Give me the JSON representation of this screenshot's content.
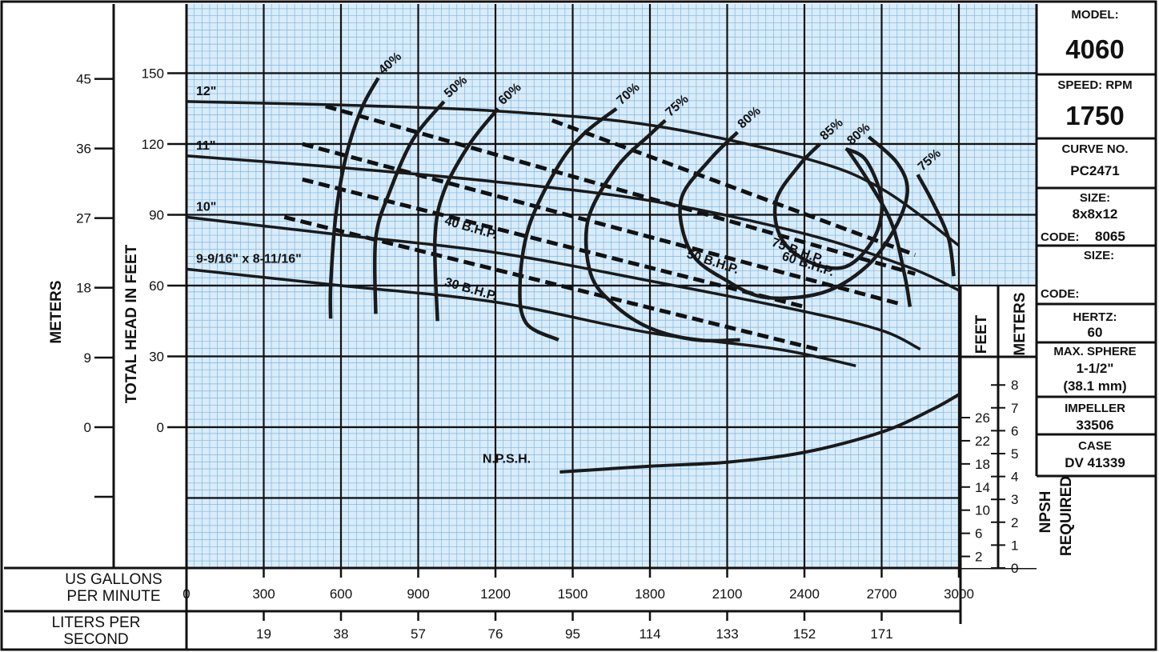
{
  "info_panel": {
    "model_label": "MODEL:",
    "model": "4060",
    "speed_label": "SPEED: RPM",
    "speed": "1750",
    "curve_label": "CURVE NO.",
    "curve": "PC2471",
    "size_label": "SIZE:",
    "size": "8x8x12",
    "code_label": "CODE:",
    "code": "8065",
    "size2_label": "SIZE:",
    "code2_label": "CODE:",
    "hertz_label": "HERTZ:",
    "hertz": "60",
    "sphere_label": "MAX. SPHERE",
    "sphere_in": "1-1/2\"",
    "sphere_mm": "(38.1 mm)",
    "impeller_label": "IMPELLER",
    "impeller": "33506",
    "case_label": "CASE",
    "case": "DV 41339"
  },
  "axes": {
    "meters_title": "METERS",
    "head_title": "TOTAL HEAD IN FEET",
    "gpm_title_1": "US GALLONS",
    "gpm_title_2": "PER MINUTE",
    "lps_title_1": "LITERS PER",
    "lps_title_2": "SECOND",
    "npsh_feet_title": "FEET",
    "npsh_meters_title": "METERS",
    "npsh_title_1": "NPSH",
    "npsh_title_2": "REQUIRED"
  },
  "chart_data": {
    "type": "line",
    "x_unit": "US gallons per minute",
    "xlim": [
      0,
      3000
    ],
    "ylim": [
      -60,
      180
    ],
    "x_ticks": [
      "0",
      "300",
      "600",
      "900",
      "1200",
      "1500",
      "1800",
      "2100",
      "2400",
      "2700",
      "3000"
    ],
    "lps_ticks": [
      {
        "gpm": 300,
        "label": "19"
      },
      {
        "gpm": 600,
        "label": "38"
      },
      {
        "gpm": 900,
        "label": "57"
      },
      {
        "gpm": 1200,
        "label": "76"
      },
      {
        "gpm": 1500,
        "label": "95"
      },
      {
        "gpm": 1800,
        "label": "114"
      },
      {
        "gpm": 2100,
        "label": "133"
      },
      {
        "gpm": 2400,
        "label": "152"
      },
      {
        "gpm": 2700,
        "label": "171"
      }
    ],
    "feet_ticks": [
      {
        "v": 150,
        "label": "150"
      },
      {
        "v": 120,
        "label": "120"
      },
      {
        "v": 90,
        "label": "90"
      },
      {
        "v": 60,
        "label": "60"
      },
      {
        "v": 30,
        "label": "30"
      },
      {
        "v": 0,
        "label": "0"
      }
    ],
    "meter_ticks": [
      {
        "v": 147.6,
        "label": "45"
      },
      {
        "v": 118.1,
        "label": "36"
      },
      {
        "v": 88.6,
        "label": "27"
      },
      {
        "v": 59.1,
        "label": "18"
      },
      {
        "v": 29.5,
        "label": "9"
      },
      {
        "v": 0,
        "label": "0"
      },
      {
        "v": -29.5,
        "label": ""
      }
    ],
    "npsh_feet_ticks": [
      {
        "v": 26,
        "label": "26"
      },
      {
        "v": 22,
        "label": "22"
      },
      {
        "v": 18,
        "label": "18"
      },
      {
        "v": 14,
        "label": "14"
      },
      {
        "v": 10,
        "label": "10"
      },
      {
        "v": 6,
        "label": "6"
      },
      {
        "v": 2,
        "label": "2"
      }
    ],
    "npsh_meter_ticks": [
      {
        "v": 8,
        "label": "8"
      },
      {
        "v": 7,
        "label": "7"
      },
      {
        "v": 6,
        "label": "6"
      },
      {
        "v": 5,
        "label": "5"
      },
      {
        "v": 4,
        "label": "4"
      },
      {
        "v": 3,
        "label": "3"
      },
      {
        "v": 2,
        "label": "2"
      },
      {
        "v": 1,
        "label": "1"
      },
      {
        "v": 0,
        "label": "0"
      }
    ],
    "head_curves": [
      {
        "name": "12\"",
        "points": [
          [
            0,
            138
          ],
          [
            600,
            136.5
          ],
          [
            1200,
            134
          ],
          [
            1800,
            128
          ],
          [
            2400,
            114
          ],
          [
            2700,
            101
          ],
          [
            3000,
            77
          ]
        ]
      },
      {
        "name": "11\"",
        "points": [
          [
            0,
            115
          ],
          [
            600,
            110
          ],
          [
            1200,
            104
          ],
          [
            1800,
            96
          ],
          [
            2400,
            82
          ],
          [
            2800,
            68
          ],
          [
            3000,
            58
          ]
        ]
      },
      {
        "name": "10\"",
        "points": [
          [
            0,
            89
          ],
          [
            600,
            81.5
          ],
          [
            1200,
            74
          ],
          [
            1800,
            62
          ],
          [
            2400,
            49
          ],
          [
            2700,
            41
          ],
          [
            2850,
            33
          ]
        ]
      },
      {
        "name": "9-9/16\" x 8-11/16\"",
        "points": [
          [
            0,
            67
          ],
          [
            600,
            60
          ],
          [
            1200,
            53
          ],
          [
            1800,
            40
          ],
          [
            2300,
            33
          ],
          [
            2600,
            26
          ]
        ]
      }
    ],
    "bhp_lines": [
      {
        "name": "75 B.H.P.",
        "points": [
          [
            1420,
            130
          ],
          [
            2830,
            73
          ]
        ]
      },
      {
        "name": "60 B.H.P.",
        "points": [
          [
            540,
            136
          ],
          [
            2830,
            65
          ]
        ]
      },
      {
        "name": "50 B.H.P.",
        "points": [
          [
            450,
            120
          ],
          [
            2780,
            52
          ]
        ]
      },
      {
        "name": "40 B.H.P.",
        "points": [
          [
            450,
            105
          ],
          [
            2400,
            51
          ]
        ]
      },
      {
        "name": "30 B.H.P.",
        "points": [
          [
            380,
            89
          ],
          [
            2450,
            33
          ]
        ]
      }
    ],
    "efficiency_curves": [
      {
        "name": "40%",
        "points": [
          [
            745,
            148
          ],
          [
            680,
            135
          ],
          [
            620,
            115
          ],
          [
            580,
            90
          ],
          [
            560,
            60
          ],
          [
            560,
            46
          ]
        ]
      },
      {
        "name": "50%",
        "points": [
          [
            1000,
            138
          ],
          [
            880,
            122
          ],
          [
            790,
            100
          ],
          [
            735,
            80
          ],
          [
            735,
            48
          ]
        ]
      },
      {
        "name": "60%",
        "points": [
          [
            1210,
            135
          ],
          [
            1100,
            120
          ],
          [
            1000,
            100
          ],
          [
            965,
            80
          ],
          [
            975,
            45
          ]
        ]
      },
      {
        "name": "70%",
        "points": [
          [
            1670,
            135
          ],
          [
            1540,
            124
          ],
          [
            1440,
            110
          ],
          [
            1330,
            85
          ],
          [
            1295,
            60
          ],
          [
            1320,
            44
          ],
          [
            1445,
            37
          ]
        ]
      },
      {
        "name": "75%",
        "points": [
          [
            1860,
            130
          ],
          [
            1800,
            124
          ],
          [
            1670,
            110
          ],
          [
            1560,
            88
          ],
          [
            1570,
            65
          ],
          [
            1660,
            52
          ],
          [
            1800,
            42
          ],
          [
            1980,
            37
          ],
          [
            2150,
            37
          ]
        ]
      },
      {
        "name": "80%",
        "points": [
          [
            2140,
            125
          ],
          [
            2030,
            113
          ],
          [
            1920,
            96
          ],
          [
            1960,
            74
          ],
          [
            2100,
            62
          ],
          [
            2250,
            55
          ],
          [
            2470,
            57
          ],
          [
            2640,
            68
          ],
          [
            2750,
            84
          ],
          [
            2800,
            100
          ],
          [
            2760,
            112
          ],
          [
            2650,
            123
          ]
        ]
      },
      {
        "name": "85%",
        "points": [
          [
            2460,
            120
          ],
          [
            2380,
            111
          ],
          [
            2290,
            96
          ],
          [
            2310,
            80
          ],
          [
            2420,
            70
          ],
          [
            2560,
            68
          ],
          [
            2670,
            80
          ],
          [
            2700,
            96
          ],
          [
            2640,
            113
          ],
          [
            2560,
            118
          ]
        ]
      },
      {
        "name": "80%",
        "points": [
          [
            2565,
            118
          ],
          [
            2650,
            104
          ],
          [
            2740,
            86
          ],
          [
            2790,
            64
          ],
          [
            2810,
            51
          ]
        ]
      },
      {
        "name": "75%",
        "points": [
          [
            2840,
            107
          ],
          [
            2900,
            95
          ],
          [
            2960,
            80
          ],
          [
            2980,
            64
          ]
        ]
      }
    ],
    "npsh_curve": {
      "name": "N.P.S.H.",
      "points_ft": [
        [
          1450,
          16.6
        ],
        [
          1800,
          17.6
        ],
        [
          2100,
          18.3
        ],
        [
          2400,
          20
        ],
        [
          2700,
          23.5
        ],
        [
          2900,
          27.5
        ],
        [
          3000,
          30
        ]
      ]
    },
    "labels": {
      "npsh": "N.P.S.H.",
      "bhp75": "75 B.H.P.",
      "bhp60": "60 B.H.P.",
      "bhp50": "50 B.H.P.",
      "bhp40": "40 B.H.P.",
      "bhp30": "30 B.H.P."
    }
  }
}
